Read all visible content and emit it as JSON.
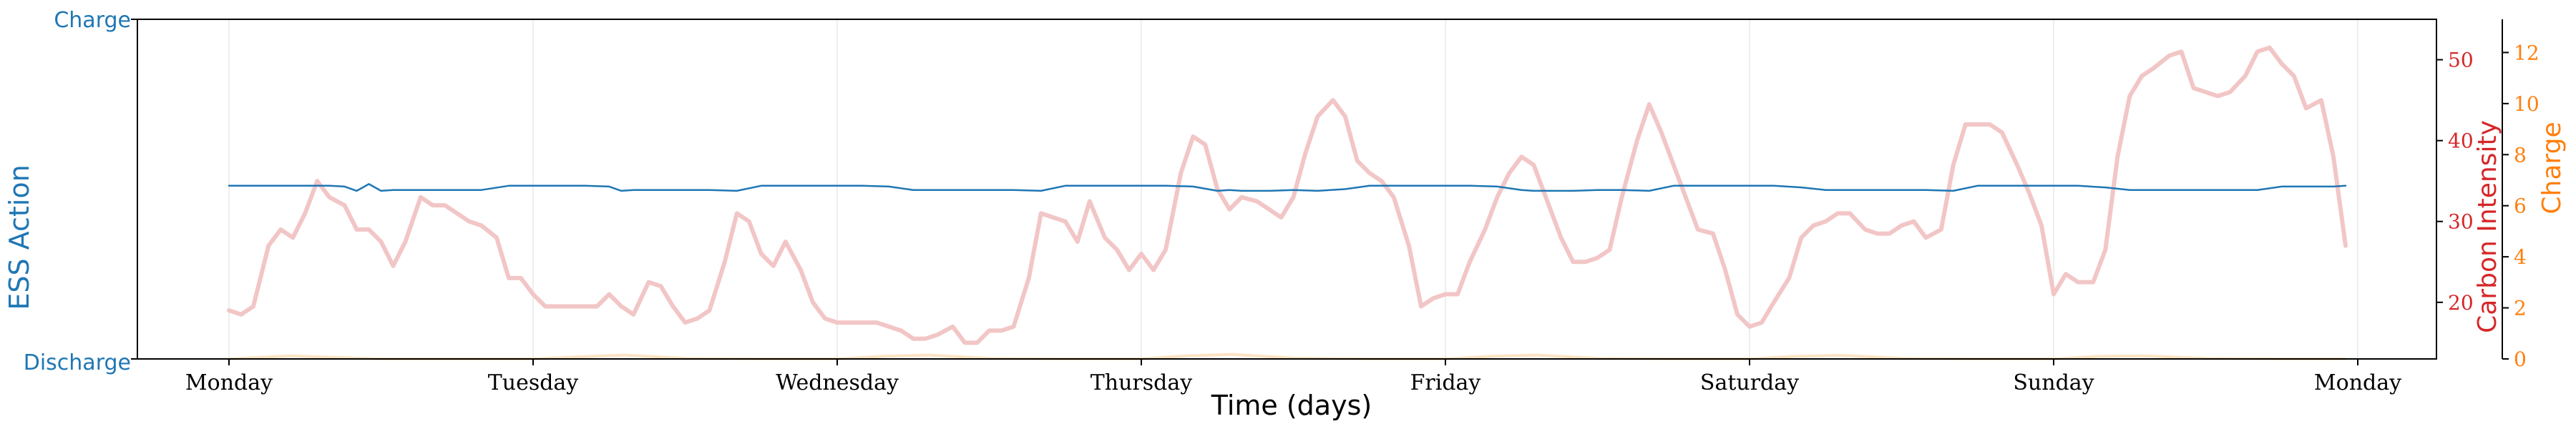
{
  "chart_data": {
    "type": "line",
    "xlabel": "Time (days)",
    "x_ticks": [
      "Monday",
      "Tuesday",
      "Wednesday",
      "Thursday",
      "Friday",
      "Saturday",
      "Sunday",
      "Monday"
    ],
    "left_axis": {
      "label": "ESS Action",
      "tick_labels": [
        "Charge",
        "Discharge"
      ],
      "ylim": [
        -1,
        1
      ],
      "color": "#1f77b4"
    },
    "right_axis_1": {
      "label": "Carbon Intensity",
      "ticks": [
        20,
        30,
        40,
        50
      ],
      "ylim": [
        13,
        55
      ],
      "color": "#d62728"
    },
    "right_axis_2": {
      "label": "Charge",
      "ticks": [
        0,
        2,
        4,
        6,
        8,
        10,
        12
      ],
      "ylim": [
        0,
        13.3
      ],
      "color": "#ff7f0e"
    },
    "grid": "vertical",
    "series": [
      {
        "axis": "left",
        "color": "#1f77b4",
        "x": [
          0,
          0.17,
          0.25,
          0.33,
          0.38,
          0.42,
          0.46,
          0.5,
          0.54,
          0.58,
          0.63,
          0.7,
          0.75,
          0.83,
          0.92,
          1.0,
          1.08,
          1.17,
          1.25,
          1.29,
          1.33,
          1.42,
          1.5,
          1.58,
          1.67,
          1.75,
          1.79,
          1.83,
          1.92,
          2.0,
          2.08,
          2.17,
          2.25,
          2.29,
          2.33,
          2.42,
          2.5,
          2.58,
          2.67,
          2.75,
          2.79,
          2.83,
          2.92,
          3.0,
          3.08,
          3.17,
          3.25,
          3.29,
          3.33,
          3.42,
          3.5,
          3.58,
          3.67,
          3.75,
          3.79,
          3.83,
          3.92,
          4.0,
          4.08,
          4.17,
          4.25,
          4.29,
          4.33,
          4.42,
          4.5,
          4.58,
          4.67,
          4.75,
          4.79,
          4.83,
          4.92,
          5.0,
          5.08,
          5.17,
          5.25,
          5.29,
          5.33,
          5.42,
          5.5,
          5.58,
          5.67,
          5.75,
          5.79,
          5.83,
          5.92,
          6.0,
          6.08,
          6.17,
          6.25,
          6.29,
          6.33,
          6.42,
          6.5,
          6.58,
          6.67,
          6.75,
          6.79,
          6.83,
          6.92,
          6.96
        ],
        "y": [
          0.02,
          0.02,
          0.02,
          0.02,
          0.015,
          -0.01,
          0.03,
          -0.01,
          -0.005,
          -0.005,
          -0.005,
          -0.005,
          -0.005,
          -0.005,
          0.02,
          0.02,
          0.02,
          0.02,
          0.015,
          -0.01,
          -0.005,
          -0.005,
          -0.005,
          -0.005,
          -0.01,
          0.02,
          0.02,
          0.02,
          0.02,
          0.02,
          0.02,
          0.015,
          -0.005,
          -0.005,
          -0.005,
          -0.005,
          -0.005,
          -0.005,
          -0.01,
          0.02,
          0.02,
          0.02,
          0.02,
          0.02,
          0.02,
          0.015,
          -0.01,
          -0.005,
          -0.01,
          -0.01,
          -0.005,
          -0.01,
          0.0,
          0.02,
          0.02,
          0.02,
          0.02,
          0.02,
          0.02,
          0.015,
          -0.005,
          -0.01,
          -0.01,
          -0.01,
          -0.005,
          -0.005,
          -0.01,
          0.02,
          0.02,
          0.02,
          0.02,
          0.02,
          0.02,
          0.01,
          -0.005,
          -0.005,
          -0.005,
          -0.005,
          -0.005,
          -0.005,
          -0.01,
          0.02,
          0.02,
          0.02,
          0.02,
          0.02,
          0.02,
          0.01,
          -0.005,
          -0.005,
          -0.005,
          -0.005,
          -0.005,
          -0.005,
          -0.005,
          0.015,
          0.015,
          0.015,
          0.015,
          0.02
        ]
      },
      {
        "axis": "right_1",
        "color": "#f2c6c6",
        "x": [
          0,
          0.04,
          0.08,
          0.13,
          0.17,
          0.21,
          0.25,
          0.29,
          0.33,
          0.38,
          0.42,
          0.46,
          0.5,
          0.54,
          0.58,
          0.63,
          0.67,
          0.71,
          0.75,
          0.79,
          0.83,
          0.88,
          0.92,
          0.96,
          1.0,
          1.04,
          1.08,
          1.13,
          1.17,
          1.21,
          1.25,
          1.29,
          1.33,
          1.38,
          1.42,
          1.46,
          1.5,
          1.54,
          1.58,
          1.63,
          1.67,
          1.71,
          1.75,
          1.79,
          1.83,
          1.88,
          1.92,
          1.96,
          2.0,
          2.04,
          2.08,
          2.13,
          2.17,
          2.21,
          2.25,
          2.29,
          2.33,
          2.38,
          2.42,
          2.46,
          2.5,
          2.54,
          2.58,
          2.63,
          2.67,
          2.71,
          2.75,
          2.79,
          2.83,
          2.88,
          2.92,
          2.96,
          3.0,
          3.04,
          3.08,
          3.13,
          3.17,
          3.21,
          3.25,
          3.29,
          3.33,
          3.38,
          3.42,
          3.46,
          3.5,
          3.54,
          3.58,
          3.63,
          3.67,
          3.71,
          3.75,
          3.79,
          3.83,
          3.88,
          3.92,
          3.96,
          4.0,
          4.04,
          4.08,
          4.13,
          4.17,
          4.21,
          4.25,
          4.29,
          4.33,
          4.38,
          4.42,
          4.46,
          4.5,
          4.54,
          4.58,
          4.63,
          4.67,
          4.71,
          4.75,
          4.79,
          4.83,
          4.88,
          4.92,
          4.96,
          5.0,
          5.04,
          5.08,
          5.13,
          5.17,
          5.21,
          5.25,
          5.29,
          5.33,
          5.38,
          5.42,
          5.46,
          5.5,
          5.54,
          5.58,
          5.63,
          5.67,
          5.71,
          5.75,
          5.79,
          5.83,
          5.88,
          5.92,
          5.96,
          6.0,
          6.04,
          6.08,
          6.13,
          6.17,
          6.21,
          6.25,
          6.29,
          6.33,
          6.38,
          6.42,
          6.46,
          6.5,
          6.54,
          6.58,
          6.63,
          6.67,
          6.71,
          6.75,
          6.79,
          6.83,
          6.88,
          6.92,
          6.96
        ],
        "y": [
          19,
          18.5,
          19.5,
          27,
          29,
          28,
          31,
          35,
          33,
          32,
          29,
          29,
          27.5,
          24.5,
          27.5,
          33,
          32,
          32,
          31,
          30,
          29.5,
          28,
          23,
          23,
          21,
          19.5,
          19.5,
          19.5,
          19.5,
          19.5,
          21,
          19.5,
          18.5,
          22.5,
          22,
          19.5,
          17.5,
          18,
          19,
          25,
          31,
          30,
          26,
          24.5,
          27.5,
          24,
          20,
          18,
          17.5,
          17.5,
          17.5,
          17.5,
          17,
          16.5,
          15.5,
          15.5,
          16,
          17,
          15,
          15,
          16.5,
          16.5,
          17,
          23,
          31,
          30.5,
          30,
          27.5,
          32.5,
          28,
          26.5,
          24,
          26,
          24,
          26.5,
          36,
          40.5,
          39.5,
          34,
          31.5,
          33,
          32.5,
          31.5,
          30.5,
          33,
          38.5,
          43,
          45,
          43,
          37.5,
          36,
          35,
          33,
          27,
          19.5,
          20.5,
          21,
          21,
          25,
          29,
          33,
          36,
          38,
          37,
          33,
          28,
          25,
          25,
          25.5,
          26.5,
          33,
          40,
          44.5,
          41,
          37,
          33,
          29,
          28.5,
          24,
          18.5,
          17,
          17.5,
          20,
          23,
          28,
          29.5,
          30,
          31,
          31,
          29,
          28.5,
          28.5,
          29.5,
          30,
          28,
          29,
          37,
          42,
          42,
          42,
          41,
          37,
          33.5,
          29.5,
          21,
          23.5,
          22.5,
          22.5,
          26.5,
          38,
          45.5,
          48,
          49,
          50.5,
          51,
          46.5,
          46,
          45.5,
          46,
          48,
          51,
          51.5,
          49.5,
          48,
          44,
          45,
          38,
          27
        ]
      },
      {
        "axis": "right_2",
        "color": "#fde3c3",
        "x": [
          0,
          0.2,
          0.5,
          0.8,
          1.0,
          1.15,
          1.3,
          1.5,
          1.75,
          2.0,
          2.15,
          2.3,
          2.5,
          2.75,
          3.0,
          3.15,
          3.3,
          3.5,
          3.75,
          4.0,
          4.15,
          4.3,
          4.5,
          4.75,
          5.0,
          5.15,
          5.3,
          5.5,
          5.75,
          6.0,
          6.15,
          6.3,
          6.5,
          6.75,
          6.96
        ],
        "y": [
          0,
          0.12,
          0,
          0,
          0,
          0.08,
          0.15,
          0.02,
          0,
          0,
          0.1,
          0.15,
          0.02,
          0,
          0,
          0.12,
          0.18,
          0.03,
          0,
          0,
          0.1,
          0.15,
          0.02,
          0,
          0,
          0.1,
          0.14,
          0.02,
          0,
          0,
          0.1,
          0.12,
          0.02,
          0,
          0
        ]
      }
    ]
  }
}
